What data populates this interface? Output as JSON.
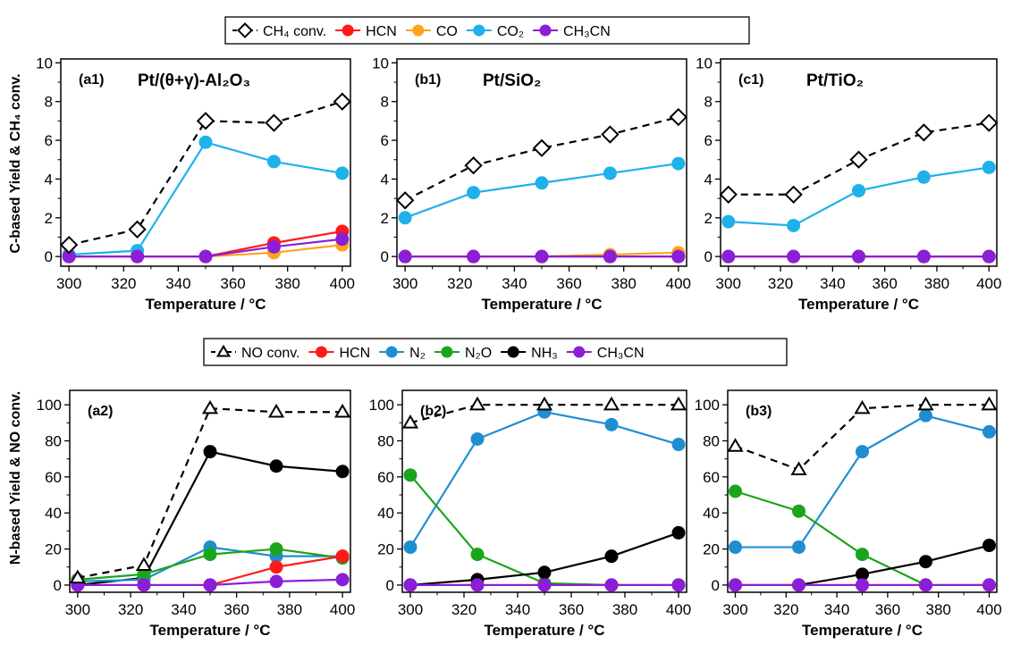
{
  "figure": {
    "ylabel_top": "C-based Yield & CH₄ conv.",
    "ylabel_bottom": "N-based Yield & NO conv."
  },
  "legend_top": {
    "items": [
      {
        "label": "CH₄ conv.",
        "color": "#000000",
        "marker": "diamond-open",
        "dashed": true
      },
      {
        "label": "HCN",
        "color": "#ff1a1a",
        "marker": "circle",
        "dashed": false
      },
      {
        "label": "CO",
        "color": "#ffa31a",
        "marker": "circle",
        "dashed": false
      },
      {
        "label": "CO₂",
        "color": "#1fb1ea",
        "marker": "circle",
        "dashed": false
      },
      {
        "label": "CH₃CN",
        "color": "#8a1fd8",
        "marker": "circle",
        "dashed": false
      }
    ]
  },
  "legend_bottom": {
    "items": [
      {
        "label": "NO conv.",
        "color": "#000000",
        "marker": "triangle-open",
        "dashed": true
      },
      {
        "label": "HCN",
        "color": "#ff1a1a",
        "marker": "circle",
        "dashed": false
      },
      {
        "label": "N₂",
        "color": "#1f8ed1",
        "marker": "circle",
        "dashed": false
      },
      {
        "label": "N₂O",
        "color": "#1aa51a",
        "marker": "circle",
        "dashed": false
      },
      {
        "label": "NH₃",
        "color": "#000000",
        "marker": "circle",
        "dashed": false
      },
      {
        "label": "CH₃CN",
        "color": "#8a1fd8",
        "marker": "circle",
        "dashed": false
      }
    ]
  },
  "chart_data": [
    {
      "type": "line",
      "id": "a1",
      "panel_label": "(a1)",
      "title": "Pt/(θ+γ)-Al₂O₃",
      "xlabel": "Temperature / °C",
      "x": [
        300,
        325,
        350,
        375,
        400
      ],
      "xlim": [
        297,
        403
      ],
      "ylim": [
        -0.5,
        10.2
      ],
      "xticks": [
        300,
        320,
        340,
        360,
        380,
        400
      ],
      "yticks": [
        0,
        2,
        4,
        6,
        8,
        10
      ],
      "series": [
        {
          "name": "CH₄ conv.",
          "color": "#000000",
          "marker": "diamond-open",
          "dashed": true,
          "values": [
            0.6,
            1.4,
            7.0,
            6.9,
            8.0
          ]
        },
        {
          "name": "CO₂",
          "color": "#1fb1ea",
          "marker": "circle",
          "values": [
            0.1,
            0.3,
            5.9,
            4.9,
            4.3
          ]
        },
        {
          "name": "CO",
          "color": "#ffa31a",
          "marker": "circle",
          "values": [
            0,
            0,
            0,
            0.2,
            0.6
          ]
        },
        {
          "name": "HCN",
          "color": "#ff1a1a",
          "marker": "circle",
          "values": [
            0,
            0,
            0,
            0.7,
            1.3
          ]
        },
        {
          "name": "CH₃CN",
          "color": "#8a1fd8",
          "marker": "circle",
          "values": [
            0,
            0,
            0,
            0.5,
            0.9
          ]
        }
      ]
    },
    {
      "type": "line",
      "id": "b1",
      "panel_label": "(b1)",
      "title": "Pt/SiO₂",
      "xlabel": "Temperature / °C",
      "x": [
        300,
        325,
        350,
        375,
        400
      ],
      "xlim": [
        297,
        403
      ],
      "ylim": [
        -0.5,
        10.2
      ],
      "xticks": [
        300,
        320,
        340,
        360,
        380,
        400
      ],
      "yticks": [
        0,
        2,
        4,
        6,
        8,
        10
      ],
      "series": [
        {
          "name": "CH₄ conv.",
          "color": "#000000",
          "marker": "diamond-open",
          "dashed": true,
          "values": [
            2.9,
            4.7,
            5.6,
            6.3,
            7.2
          ]
        },
        {
          "name": "CO₂",
          "color": "#1fb1ea",
          "marker": "circle",
          "values": [
            2.0,
            3.3,
            3.8,
            4.3,
            4.8
          ]
        },
        {
          "name": "CO",
          "color": "#ffa31a",
          "marker": "circle",
          "values": [
            0,
            0,
            0,
            0.1,
            0.2
          ]
        },
        {
          "name": "HCN",
          "color": "#ff1a1a",
          "marker": "circle",
          "values": [
            0,
            0,
            0,
            0,
            0
          ]
        },
        {
          "name": "CH₃CN",
          "color": "#8a1fd8",
          "marker": "circle",
          "values": [
            0,
            0,
            0,
            0,
            0
          ]
        }
      ]
    },
    {
      "type": "line",
      "id": "c1",
      "panel_label": "(c1)",
      "title": "Pt/TiO₂",
      "xlabel": "Temperature / °C",
      "x": [
        300,
        325,
        350,
        375,
        400
      ],
      "xlim": [
        297,
        403
      ],
      "ylim": [
        -0.5,
        10.2
      ],
      "xticks": [
        300,
        320,
        340,
        360,
        380,
        400
      ],
      "yticks": [
        0,
        2,
        4,
        6,
        8,
        10
      ],
      "series": [
        {
          "name": "CH₄ conv.",
          "color": "#000000",
          "marker": "diamond-open",
          "dashed": true,
          "values": [
            3.2,
            3.2,
            5.0,
            6.4,
            6.9
          ]
        },
        {
          "name": "CO₂",
          "color": "#1fb1ea",
          "marker": "circle",
          "values": [
            1.8,
            1.6,
            3.4,
            4.1,
            4.6
          ]
        },
        {
          "name": "CO",
          "color": "#ffa31a",
          "marker": "circle",
          "values": [
            0,
            0,
            0,
            0,
            0
          ]
        },
        {
          "name": "HCN",
          "color": "#ff1a1a",
          "marker": "circle",
          "values": [
            0,
            0,
            0,
            0,
            0
          ]
        },
        {
          "name": "CH₃CN",
          "color": "#8a1fd8",
          "marker": "circle",
          "values": [
            0,
            0,
            0,
            0,
            0
          ]
        }
      ]
    },
    {
      "type": "line",
      "id": "a2",
      "panel_label": "(a2)",
      "title": "",
      "xlabel": "Temperature / °C",
      "x": [
        300,
        325,
        350,
        375,
        400
      ],
      "xlim": [
        297,
        403
      ],
      "ylim": [
        -4,
        108
      ],
      "xticks": [
        300,
        320,
        340,
        360,
        380,
        400
      ],
      "yticks": [
        0,
        20,
        40,
        60,
        80,
        100
      ],
      "series": [
        {
          "name": "NO conv.",
          "color": "#000000",
          "marker": "triangle-open",
          "dashed": true,
          "values": [
            4,
            11,
            98,
            96,
            96
          ]
        },
        {
          "name": "NH₃",
          "color": "#000000",
          "marker": "circle",
          "values": [
            0,
            4,
            74,
            66,
            63
          ]
        },
        {
          "name": "N₂",
          "color": "#1f8ed1",
          "marker": "circle",
          "values": [
            2,
            3,
            21,
            16,
            16
          ]
        },
        {
          "name": "N₂O",
          "color": "#1aa51a",
          "marker": "circle",
          "values": [
            3,
            6,
            17,
            20,
            15
          ]
        },
        {
          "name": "HCN",
          "color": "#ff1a1a",
          "marker": "circle",
          "values": [
            0,
            0,
            0,
            10,
            16
          ]
        },
        {
          "name": "CH₃CN",
          "color": "#8a1fd8",
          "marker": "circle",
          "values": [
            0,
            0,
            0,
            2,
            3
          ]
        }
      ]
    },
    {
      "type": "line",
      "id": "b2",
      "panel_label": "(b2)",
      "title": "",
      "xlabel": "Temperature / °C",
      "x": [
        300,
        325,
        350,
        375,
        400
      ],
      "xlim": [
        297,
        403
      ],
      "ylim": [
        -4,
        108
      ],
      "xticks": [
        300,
        320,
        340,
        360,
        380,
        400
      ],
      "yticks": [
        0,
        20,
        40,
        60,
        80,
        100
      ],
      "series": [
        {
          "name": "NO conv.",
          "color": "#000000",
          "marker": "triangle-open",
          "dashed": true,
          "values": [
            90,
            100,
            100,
            100,
            100
          ]
        },
        {
          "name": "N₂",
          "color": "#1f8ed1",
          "marker": "circle",
          "values": [
            21,
            81,
            96,
            89,
            78
          ]
        },
        {
          "name": "N₂O",
          "color": "#1aa51a",
          "marker": "circle",
          "values": [
            61,
            17,
            1,
            0,
            0
          ]
        },
        {
          "name": "NH₃",
          "color": "#000000",
          "marker": "circle",
          "values": [
            0,
            3,
            7,
            16,
            29
          ]
        },
        {
          "name": "HCN",
          "color": "#ff1a1a",
          "marker": "circle",
          "values": [
            0,
            0,
            0,
            0,
            0
          ]
        },
        {
          "name": "CH₃CN",
          "color": "#8a1fd8",
          "marker": "circle",
          "values": [
            0,
            0,
            0,
            0,
            0
          ]
        }
      ]
    },
    {
      "type": "line",
      "id": "b3",
      "panel_label": "(b3)",
      "title": "",
      "xlabel": "Temperature / °C",
      "x": [
        300,
        325,
        350,
        375,
        400
      ],
      "xlim": [
        297,
        403
      ],
      "ylim": [
        -4,
        108
      ],
      "xticks": [
        300,
        320,
        340,
        360,
        380,
        400
      ],
      "yticks": [
        0,
        20,
        40,
        60,
        80,
        100
      ],
      "series": [
        {
          "name": "NO conv.",
          "color": "#000000",
          "marker": "triangle-open",
          "dashed": true,
          "values": [
            77,
            64,
            98,
            100,
            100
          ]
        },
        {
          "name": "N₂",
          "color": "#1f8ed1",
          "marker": "circle",
          "values": [
            21,
            21,
            74,
            94,
            85
          ]
        },
        {
          "name": "N₂O",
          "color": "#1aa51a",
          "marker": "circle",
          "values": [
            52,
            41,
            17,
            0,
            0
          ]
        },
        {
          "name": "NH₃",
          "color": "#000000",
          "marker": "circle",
          "values": [
            0,
            0,
            6,
            13,
            22
          ]
        },
        {
          "name": "HCN",
          "color": "#ff1a1a",
          "marker": "circle",
          "values": [
            0,
            0,
            0,
            0,
            0
          ]
        },
        {
          "name": "CH₃CN",
          "color": "#8a1fd8",
          "marker": "circle",
          "values": [
            0,
            0,
            0,
            0,
            0
          ]
        }
      ]
    }
  ]
}
